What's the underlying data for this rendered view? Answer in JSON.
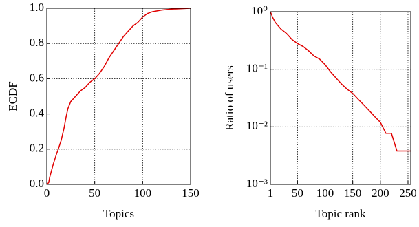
{
  "chart_data": [
    {
      "type": "line",
      "xlabel": "Topics",
      "ylabel": "ECDF",
      "x": [
        0,
        2,
        3,
        5,
        7,
        10,
        12,
        15,
        18,
        20,
        22,
        25,
        30,
        35,
        40,
        45,
        50,
        55,
        60,
        65,
        70,
        75,
        80,
        85,
        90,
        95,
        100,
        105,
        110,
        120,
        130,
        150
      ],
      "series": [
        {
          "name": "ECDF",
          "color": "#e00000",
          "values": [
            0,
            0.01,
            0.04,
            0.08,
            0.12,
            0.17,
            0.2,
            0.25,
            0.32,
            0.38,
            0.43,
            0.47,
            0.5,
            0.53,
            0.55,
            0.58,
            0.6,
            0.63,
            0.67,
            0.72,
            0.76,
            0.8,
            0.84,
            0.87,
            0.9,
            0.92,
            0.95,
            0.97,
            0.98,
            0.99,
            0.995,
            1.0
          ]
        }
      ],
      "xlim": [
        0,
        150
      ],
      "ylim": [
        0,
        1
      ],
      "xticks": [
        0,
        50,
        100,
        150
      ],
      "yticks": [
        {
          "value": 0,
          "label": "0.0"
        },
        0.2,
        0.4,
        0.6,
        0.8,
        {
          "value": 1,
          "label": "1.0"
        }
      ],
      "grid": true
    },
    {
      "type": "line",
      "xlabel": "Topic rank",
      "ylabel": "Ratio of users",
      "x": [
        1,
        5,
        10,
        20,
        30,
        40,
        50,
        60,
        70,
        80,
        90,
        100,
        110,
        120,
        130,
        140,
        150,
        160,
        170,
        180,
        190,
        200,
        210,
        220,
        230,
        255
      ],
      "series": [
        {
          "name": "Ratio of users",
          "color": "#e00000",
          "values": [
            1.0,
            0.8,
            0.65,
            0.5,
            0.42,
            0.33,
            0.28,
            0.25,
            0.21,
            0.17,
            0.15,
            0.12,
            0.09,
            0.07,
            0.055,
            0.045,
            0.038,
            0.03,
            0.024,
            0.019,
            0.015,
            0.012,
            0.0077,
            0.0077,
            0.0038,
            0.0038
          ]
        }
      ],
      "xlim": [
        1,
        255
      ],
      "ylim": [
        0.001,
        1
      ],
      "ylog": true,
      "xticks": [
        1,
        50,
        100,
        150,
        200,
        250
      ],
      "yticks": [
        {
          "value": 0.001,
          "label": "10⁻³"
        },
        {
          "value": 0.01,
          "label": "10⁻²"
        },
        {
          "value": 0.1,
          "label": "10⁻¹"
        },
        {
          "value": 1,
          "label": "10⁰"
        }
      ],
      "grid": true
    }
  ]
}
